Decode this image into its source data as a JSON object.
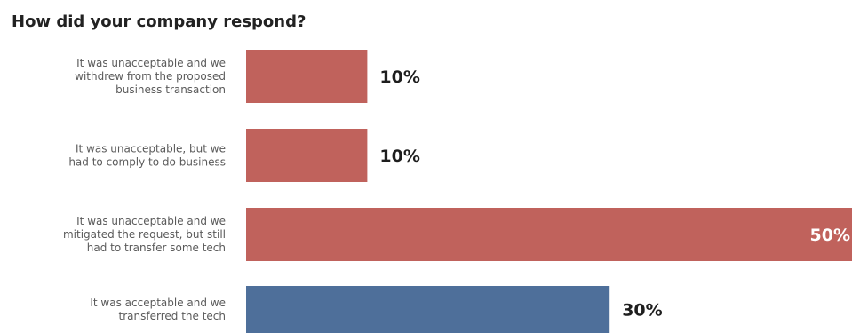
{
  "chart_data": {
    "type": "bar",
    "orientation": "horizontal",
    "title": "How did your company respond?",
    "categories": [
      [
        "It was unacceptable and we",
        "withdrew from the proposed",
        "business transaction"
      ],
      [
        "It was unacceptable, but we",
        "had to comply to  do business"
      ],
      [
        "It was unacceptable and we",
        "mitigated the request, but still",
        "had to transfer some tech"
      ],
      [
        "It was acceptable and we",
        "transferred the tech"
      ]
    ],
    "values": [
      10,
      10,
      50,
      30
    ],
    "value_labels": [
      "10%",
      "10%",
      "50%",
      "30%"
    ],
    "unit": "%",
    "xlim": [
      0,
      50
    ],
    "grid": false,
    "legend": "none",
    "colors": {
      "unacceptable": "#c0625c",
      "acceptable": "#4e6f9a",
      "label_text": "#5a5a5a",
      "value_text_dark": "#1e1e1e",
      "value_text_light": "#ffffff"
    },
    "bar_colors": [
      "#c0625c",
      "#c0625c",
      "#c0625c",
      "#4e6f9a"
    ]
  }
}
